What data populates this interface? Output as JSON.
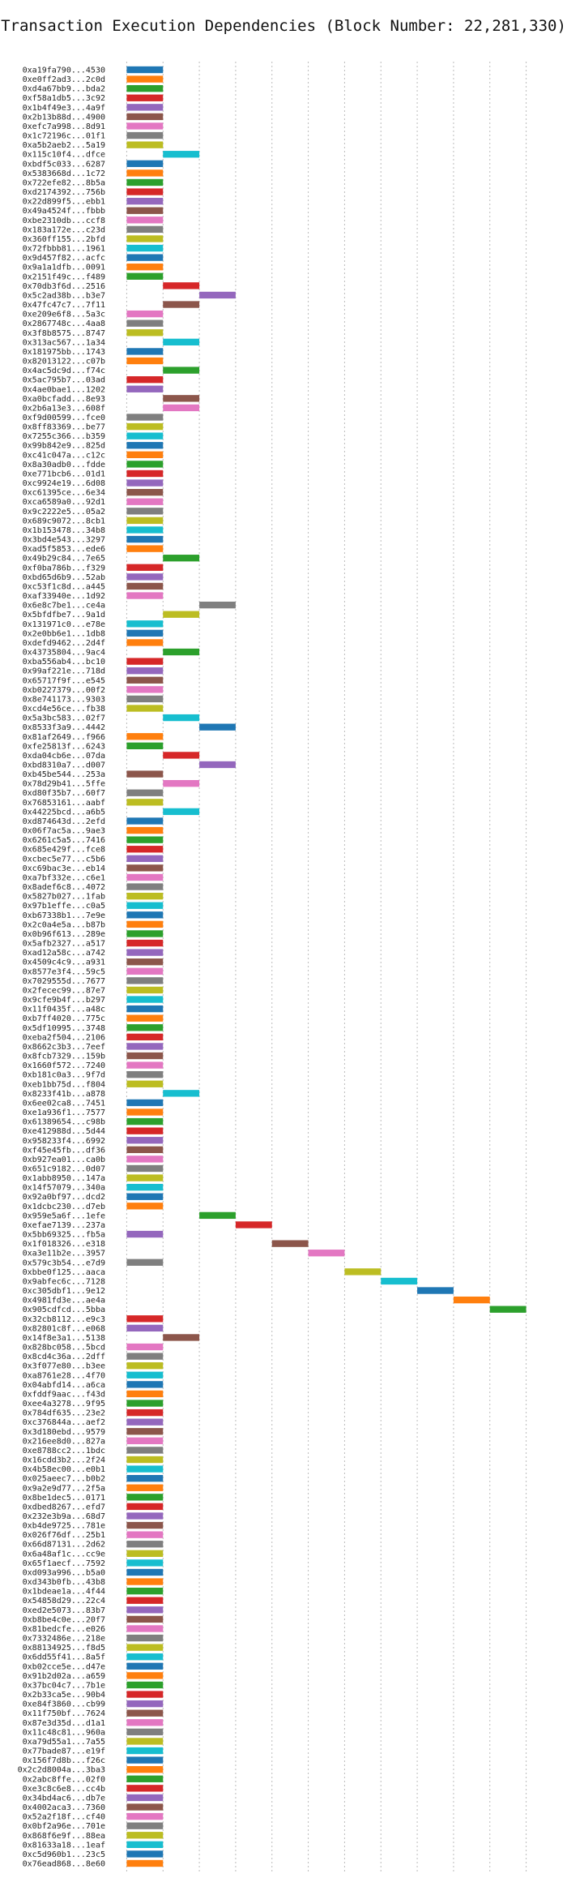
{
  "chart_data": {
    "type": "gantt",
    "title": "Transaction Execution Dependencies (Block Number: 22,281,330)",
    "xlabel": "",
    "ylabel": "",
    "xlim": [
      -0.5,
      11.5
    ],
    "x_ticks": [
      0,
      2,
      4,
      6,
      8,
      10
    ],
    "grid": "vertical dotted",
    "legend": "none",
    "palette": [
      "#1f77b4",
      "#ff7f0e",
      "#2ca02c",
      "#d62728",
      "#9467bd",
      "#8c564b",
      "#e377c2",
      "#7f7f7f",
      "#bcbd22",
      "#17becf"
    ],
    "transactions": [
      {
        "label": "0xa19fa790...4530",
        "start": 0,
        "end": 1
      },
      {
        "label": "0xe0ff2ad3...2c0d",
        "start": 0,
        "end": 1
      },
      {
        "label": "0xd4a67bb9...bda2",
        "start": 0,
        "end": 1
      },
      {
        "label": "0xf58a1db5...3c92",
        "start": 0,
        "end": 1
      },
      {
        "label": "0x1b4f49e3...4a9f",
        "start": 0,
        "end": 1
      },
      {
        "label": "0x2b13b88d...4900",
        "start": 0,
        "end": 1
      },
      {
        "label": "0xefc7a998...8d91",
        "start": 0,
        "end": 1
      },
      {
        "label": "0x1c72196c...01f1",
        "start": 0,
        "end": 1
      },
      {
        "label": "0xa5b2aeb2...5a19",
        "start": 0,
        "end": 1
      },
      {
        "label": "0x115c10f4...dfce",
        "start": 1,
        "end": 2
      },
      {
        "label": "0xbdf5c033...6287",
        "start": 0,
        "end": 1
      },
      {
        "label": "0x5383668d...1c72",
        "start": 0,
        "end": 1
      },
      {
        "label": "0x722efe82...8b5a",
        "start": 0,
        "end": 1
      },
      {
        "label": "0xd2174392...756b",
        "start": 0,
        "end": 1
      },
      {
        "label": "0x22d899f5...ebb1",
        "start": 0,
        "end": 1
      },
      {
        "label": "0x49a4524f...fbbb",
        "start": 0,
        "end": 1
      },
      {
        "label": "0xbe2310db...ccf8",
        "start": 0,
        "end": 1
      },
      {
        "label": "0x183a172e...c23d",
        "start": 0,
        "end": 1
      },
      {
        "label": "0x360ff155...2bfd",
        "start": 0,
        "end": 1
      },
      {
        "label": "0x72fbbb81...1961",
        "start": 0,
        "end": 1
      },
      {
        "label": "0x9d457f82...acfc",
        "start": 0,
        "end": 1
      },
      {
        "label": "0x9a1a1dfb...0091",
        "start": 0,
        "end": 1
      },
      {
        "label": "0x2151f49c...f489",
        "start": 0,
        "end": 1
      },
      {
        "label": "0x70db3f6d...2516",
        "start": 1,
        "end": 2
      },
      {
        "label": "0x5c2ad38b...b3e7",
        "start": 2,
        "end": 3
      },
      {
        "label": "0x47fc47c7...7f11",
        "start": 1,
        "end": 2
      },
      {
        "label": "0xe209e6f8...5a3c",
        "start": 0,
        "end": 1
      },
      {
        "label": "0x2867748c...4aa8",
        "start": 0,
        "end": 1
      },
      {
        "label": "0x3f8b8575...8747",
        "start": 0,
        "end": 1
      },
      {
        "label": "0x313ac567...1a34",
        "start": 1,
        "end": 2
      },
      {
        "label": "0x181975bb...1743",
        "start": 0,
        "end": 1
      },
      {
        "label": "0x82013122...c07b",
        "start": 0,
        "end": 1
      },
      {
        "label": "0x4ac5dc9d...f74c",
        "start": 1,
        "end": 2
      },
      {
        "label": "0x5ac795b7...03ad",
        "start": 0,
        "end": 1
      },
      {
        "label": "0x4ae0bae1...1202",
        "start": 0,
        "end": 1
      },
      {
        "label": "0xa0bcfadd...8e93",
        "start": 1,
        "end": 2
      },
      {
        "label": "0x2b6a13e3...608f",
        "start": 1,
        "end": 2
      },
      {
        "label": "0xf9d00599...fce0",
        "start": 0,
        "end": 1
      },
      {
        "label": "0x8ff83369...be77",
        "start": 0,
        "end": 1
      },
      {
        "label": "0x7255c366...b359",
        "start": 0,
        "end": 1
      },
      {
        "label": "0x99b842e9...825d",
        "start": 0,
        "end": 1
      },
      {
        "label": "0xc41c047a...c12c",
        "start": 0,
        "end": 1
      },
      {
        "label": "0x8a30adb0...fdde",
        "start": 0,
        "end": 1
      },
      {
        "label": "0xe771bcb6...01d1",
        "start": 0,
        "end": 1
      },
      {
        "label": "0xc9924e19...6d08",
        "start": 0,
        "end": 1
      },
      {
        "label": "0xc61395ce...6e34",
        "start": 0,
        "end": 1
      },
      {
        "label": "0xca6589a0...92d1",
        "start": 0,
        "end": 1
      },
      {
        "label": "0x9c2222e5...05a2",
        "start": 0,
        "end": 1
      },
      {
        "label": "0x689c9072...8cb1",
        "start": 0,
        "end": 1
      },
      {
        "label": "0x1b153478...34b8",
        "start": 0,
        "end": 1
      },
      {
        "label": "0x3bd4e543...3297",
        "start": 0,
        "end": 1
      },
      {
        "label": "0xad5f5853...ede6",
        "start": 0,
        "end": 1
      },
      {
        "label": "0x49b29c84...7e65",
        "start": 1,
        "end": 2
      },
      {
        "label": "0xf0ba786b...f329",
        "start": 0,
        "end": 1
      },
      {
        "label": "0xbd65d6b9...52ab",
        "start": 0,
        "end": 1
      },
      {
        "label": "0xc53f1c8d...a445",
        "start": 0,
        "end": 1
      },
      {
        "label": "0xaf33940e...1d92",
        "start": 0,
        "end": 1
      },
      {
        "label": "0x6e8c7be1...ce4a",
        "start": 2,
        "end": 3
      },
      {
        "label": "0x5bfdfbe7...9a1d",
        "start": 1,
        "end": 2
      },
      {
        "label": "0x131971c0...e78e",
        "start": 0,
        "end": 1
      },
      {
        "label": "0x2e0bb6e1...1db8",
        "start": 0,
        "end": 1
      },
      {
        "label": "0xdefd9462...2d4f",
        "start": 0,
        "end": 1
      },
      {
        "label": "0x43735804...9ac4",
        "start": 1,
        "end": 2
      },
      {
        "label": "0xba556ab4...bc10",
        "start": 0,
        "end": 1
      },
      {
        "label": "0x99af221e...718d",
        "start": 0,
        "end": 1
      },
      {
        "label": "0x65717f9f...e545",
        "start": 0,
        "end": 1
      },
      {
        "label": "0xb0227379...00f2",
        "start": 0,
        "end": 1
      },
      {
        "label": "0x8e741173...9303",
        "start": 0,
        "end": 1
      },
      {
        "label": "0xcd4e56ce...fb38",
        "start": 0,
        "end": 1
      },
      {
        "label": "0x5a3bc583...02f7",
        "start": 1,
        "end": 2
      },
      {
        "label": "0x8533f3a9...4442",
        "start": 2,
        "end": 3
      },
      {
        "label": "0x81af2649...f966",
        "start": 0,
        "end": 1
      },
      {
        "label": "0xfe25813f...6243",
        "start": 0,
        "end": 1
      },
      {
        "label": "0xda04cb6e...07da",
        "start": 1,
        "end": 2
      },
      {
        "label": "0xbd8310a7...d007",
        "start": 2,
        "end": 3
      },
      {
        "label": "0xb45be544...253a",
        "start": 0,
        "end": 1
      },
      {
        "label": "0x78d29b41...5ffe",
        "start": 1,
        "end": 2
      },
      {
        "label": "0xd80f35b7...60f7",
        "start": 0,
        "end": 1
      },
      {
        "label": "0x76853161...aabf",
        "start": 0,
        "end": 1
      },
      {
        "label": "0x44225bcd...a6b5",
        "start": 1,
        "end": 2
      },
      {
        "label": "0xd874643d...2efd",
        "start": 0,
        "end": 1
      },
      {
        "label": "0x06f7ac5a...9ae3",
        "start": 0,
        "end": 1
      },
      {
        "label": "0x6261c5a5...7416",
        "start": 0,
        "end": 1
      },
      {
        "label": "0x685e429f...fce8",
        "start": 0,
        "end": 1
      },
      {
        "label": "0xcbec5e77...c5b6",
        "start": 0,
        "end": 1
      },
      {
        "label": "0xc69bac3e...eb14",
        "start": 0,
        "end": 1
      },
      {
        "label": "0xa7bf332e...c6e1",
        "start": 0,
        "end": 1
      },
      {
        "label": "0x8adef6c8...4072",
        "start": 0,
        "end": 1
      },
      {
        "label": "0x5827b027...1fab",
        "start": 0,
        "end": 1
      },
      {
        "label": "0x97b1effe...c0a5",
        "start": 0,
        "end": 1
      },
      {
        "label": "0xb67338b1...7e9e",
        "start": 0,
        "end": 1
      },
      {
        "label": "0x2c0a4e5a...b87b",
        "start": 0,
        "end": 1
      },
      {
        "label": "0x0b96f613...289e",
        "start": 0,
        "end": 1
      },
      {
        "label": "0x5afb2327...a517",
        "start": 0,
        "end": 1
      },
      {
        "label": "0xad12a58c...a742",
        "start": 0,
        "end": 1
      },
      {
        "label": "0x4509c4c9...a931",
        "start": 0,
        "end": 1
      },
      {
        "label": "0x8577e3f4...59c5",
        "start": 0,
        "end": 1
      },
      {
        "label": "0x7029555d...7677",
        "start": 0,
        "end": 1
      },
      {
        "label": "0x2fecec99...87e7",
        "start": 0,
        "end": 1
      },
      {
        "label": "0x9cfe9b4f...b297",
        "start": 0,
        "end": 1
      },
      {
        "label": "0x11f0435f...a48c",
        "start": 0,
        "end": 1
      },
      {
        "label": "0xb7ff4020...775c",
        "start": 0,
        "end": 1
      },
      {
        "label": "0x5df10995...3748",
        "start": 0,
        "end": 1
      },
      {
        "label": "0xeba2f504...2106",
        "start": 0,
        "end": 1
      },
      {
        "label": "0x8662c3b3...7eef",
        "start": 0,
        "end": 1
      },
      {
        "label": "0x8fcb7329...159b",
        "start": 0,
        "end": 1
      },
      {
        "label": "0x1660f572...7240",
        "start": 0,
        "end": 1
      },
      {
        "label": "0xb181c0a3...9f7d",
        "start": 0,
        "end": 1
      },
      {
        "label": "0xeb1bb75d...f804",
        "start": 0,
        "end": 1
      },
      {
        "label": "0x8233f41b...a878",
        "start": 1,
        "end": 2
      },
      {
        "label": "0x6ee02ca8...7451",
        "start": 0,
        "end": 1
      },
      {
        "label": "0xe1a936f1...7577",
        "start": 0,
        "end": 1
      },
      {
        "label": "0x61389654...c98b",
        "start": 0,
        "end": 1
      },
      {
        "label": "0xe412988d...5d44",
        "start": 0,
        "end": 1
      },
      {
        "label": "0x958233f4...6992",
        "start": 0,
        "end": 1
      },
      {
        "label": "0xf45e45fb...df36",
        "start": 0,
        "end": 1
      },
      {
        "label": "0xb927ea01...ca0b",
        "start": 0,
        "end": 1
      },
      {
        "label": "0x651c9182...0d07",
        "start": 0,
        "end": 1
      },
      {
        "label": "0x1abb8950...147a",
        "start": 0,
        "end": 1
      },
      {
        "label": "0x14f57079...340a",
        "start": 0,
        "end": 1
      },
      {
        "label": "0x92a0bf97...dcd2",
        "start": 0,
        "end": 1
      },
      {
        "label": "0x1dcbc230...d7eb",
        "start": 0,
        "end": 1
      },
      {
        "label": "0x959e5a6f...1efe",
        "start": 2,
        "end": 3
      },
      {
        "label": "0xefae7139...237a",
        "start": 3,
        "end": 4
      },
      {
        "label": "0x5bb69325...fb5a",
        "start": 0,
        "end": 1
      },
      {
        "label": "0x1f018326...e318",
        "start": 4,
        "end": 5
      },
      {
        "label": "0xa3e11b2e...3957",
        "start": 5,
        "end": 6
      },
      {
        "label": "0x579c3b54...e7d9",
        "start": 0,
        "end": 1
      },
      {
        "label": "0xbbe0f125...aaca",
        "start": 6,
        "end": 7
      },
      {
        "label": "0x9abfec6c...7128",
        "start": 7,
        "end": 8
      },
      {
        "label": "0xc305dbf1...9e12",
        "start": 8,
        "end": 9
      },
      {
        "label": "0x4981fd3e...ae4a",
        "start": 9,
        "end": 10
      },
      {
        "label": "0x905cdfcd...5bba",
        "start": 10,
        "end": 11
      },
      {
        "label": "0x32cb8112...e9c3",
        "start": 0,
        "end": 1
      },
      {
        "label": "0x82801c8f...e068",
        "start": 0,
        "end": 1
      },
      {
        "label": "0x14f8e3a1...5138",
        "start": 1,
        "end": 2
      },
      {
        "label": "0x828bc058...5bcd",
        "start": 0,
        "end": 1
      },
      {
        "label": "0x8cd4c36a...2dff",
        "start": 0,
        "end": 1
      },
      {
        "label": "0x3f077e80...b3ee",
        "start": 0,
        "end": 1
      },
      {
        "label": "0xa8761e28...4f70",
        "start": 0,
        "end": 1
      },
      {
        "label": "0x04abfd14...a6ca",
        "start": 0,
        "end": 1
      },
      {
        "label": "0xfddf9aac...f43d",
        "start": 0,
        "end": 1
      },
      {
        "label": "0xee4a3278...9f95",
        "start": 0,
        "end": 1
      },
      {
        "label": "0x784df635...23e2",
        "start": 0,
        "end": 1
      },
      {
        "label": "0xc376844a...aef2",
        "start": 0,
        "end": 1
      },
      {
        "label": "0x3d180ebd...9579",
        "start": 0,
        "end": 1
      },
      {
        "label": "0x216ee8d0...827a",
        "start": 0,
        "end": 1
      },
      {
        "label": "0xe8788cc2...1bdc",
        "start": 0,
        "end": 1
      },
      {
        "label": "0x16cdd3b2...2f24",
        "start": 0,
        "end": 1
      },
      {
        "label": "0x4b58ec00...e0b1",
        "start": 0,
        "end": 1
      },
      {
        "label": "0x025aeec7...b0b2",
        "start": 0,
        "end": 1
      },
      {
        "label": "0x9a2e9d77...2f5a",
        "start": 0,
        "end": 1
      },
      {
        "label": "0x8be1dec5...0171",
        "start": 0,
        "end": 1
      },
      {
        "label": "0xdbed8267...efd7",
        "start": 0,
        "end": 1
      },
      {
        "label": "0x232e3b9a...68d7",
        "start": 0,
        "end": 1
      },
      {
        "label": "0xb4de9725...781e",
        "start": 0,
        "end": 1
      },
      {
        "label": "0x026f76df...25b1",
        "start": 0,
        "end": 1
      },
      {
        "label": "0x66d87131...2d62",
        "start": 0,
        "end": 1
      },
      {
        "label": "0x6a48af1c...cc9e",
        "start": 0,
        "end": 1
      },
      {
        "label": "0x65f1aecf...7592",
        "start": 0,
        "end": 1
      },
      {
        "label": "0xd093a996...b5a0",
        "start": 0,
        "end": 1
      },
      {
        "label": "0xd343b0fb...43b8",
        "start": 0,
        "end": 1
      },
      {
        "label": "0x1bdeae1a...4f44",
        "start": 0,
        "end": 1
      },
      {
        "label": "0x54858d29...22c4",
        "start": 0,
        "end": 1
      },
      {
        "label": "0xed2e5073...83b7",
        "start": 0,
        "end": 1
      },
      {
        "label": "0xb8be4c0e...20f7",
        "start": 0,
        "end": 1
      },
      {
        "label": "0x81bedcfe...e026",
        "start": 0,
        "end": 1
      },
      {
        "label": "0x7332486e...218e",
        "start": 0,
        "end": 1
      },
      {
        "label": "0x88134925...f8d5",
        "start": 0,
        "end": 1
      },
      {
        "label": "0x6dd55f41...8a5f",
        "start": 0,
        "end": 1
      },
      {
        "label": "0xb02cce5e...d47e",
        "start": 0,
        "end": 1
      },
      {
        "label": "0x91b2d02a...a659",
        "start": 0,
        "end": 1
      },
      {
        "label": "0x37bc04c7...7b1e",
        "start": 0,
        "end": 1
      },
      {
        "label": "0x2b33ca5e...90b4",
        "start": 0,
        "end": 1
      },
      {
        "label": "0xe84f3860...cb99",
        "start": 0,
        "end": 1
      },
      {
        "label": "0x11f750bf...7624",
        "start": 0,
        "end": 1
      },
      {
        "label": "0x87e3d35d...d1a1",
        "start": 0,
        "end": 1
      },
      {
        "label": "0x11c48c81...960a",
        "start": 0,
        "end": 1
      },
      {
        "label": "0xa79d55a1...7a55",
        "start": 0,
        "end": 1
      },
      {
        "label": "0x77bade87...e19f",
        "start": 0,
        "end": 1
      },
      {
        "label": "0x156f7d8b...f26c",
        "start": 0,
        "end": 1
      },
      {
        "label": "0x2c2d8004a...3ba3",
        "start": 0,
        "end": 1
      },
      {
        "label": "0x2abc8ffe...02f0",
        "start": 0,
        "end": 1
      },
      {
        "label": "0xe3c8c6e8...cc4b",
        "start": 0,
        "end": 1
      },
      {
        "label": "0x34bd4ac6...db7e",
        "start": 0,
        "end": 1
      },
      {
        "label": "0x4002aca3...7360",
        "start": 0,
        "end": 1
      },
      {
        "label": "0x52a2f18f...cf40",
        "start": 0,
        "end": 1
      },
      {
        "label": "0x0bf2a96e...701e",
        "start": 0,
        "end": 1
      },
      {
        "label": "0x868f6e9f...88ea",
        "start": 0,
        "end": 1
      },
      {
        "label": "0x81633a18...1eaf",
        "start": 0,
        "end": 1
      },
      {
        "label": "0xc5d960b1...23c5",
        "start": 0,
        "end": 1
      },
      {
        "label": "0x76ead868...8e60",
        "start": 0,
        "end": 1
      }
    ]
  }
}
